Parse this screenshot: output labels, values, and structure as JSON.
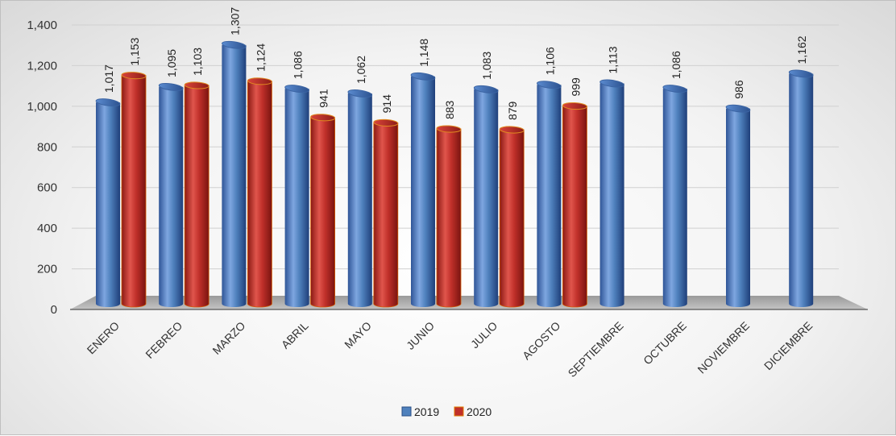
{
  "chart_data": {
    "type": "bar",
    "categories": [
      "ENERO",
      "FEBREO",
      "MARZO",
      "ABRIL",
      "MAYO",
      "JUNIO",
      "JULIO",
      "AGOSTO",
      "SEPTIEMBRE",
      "OCTUBRE",
      "NOVIEMBRE",
      "DICIEMBRE"
    ],
    "series": [
      {
        "name": "2019",
        "color": "#4f81bd",
        "values": [
          1017,
          1095,
          1307,
          1086,
          1062,
          1148,
          1083,
          1106,
          1113,
          1086,
          986,
          1162
        ]
      },
      {
        "name": "2020",
        "color": "#c0302a",
        "values": [
          1153,
          1103,
          1124,
          941,
          914,
          883,
          879,
          999,
          null,
          null,
          null,
          null
        ]
      }
    ],
    "value_labels": {
      "2019": [
        "1,017",
        "1,095",
        "1,307",
        "1,086",
        "1,062",
        "1,148",
        "1,083",
        "1,106",
        "1,113",
        "1,086",
        "986",
        "1,162"
      ],
      "2020": [
        "1,153",
        "1,103",
        "1,124",
        "941",
        "914",
        "883",
        "879",
        "999",
        null,
        null,
        null,
        null
      ]
    },
    "yticks": [
      "0",
      "200",
      "400",
      "600",
      "800",
      "1,000",
      "1,200",
      "1,400"
    ],
    "ylim": [
      0,
      1400
    ],
    "grid": true,
    "legend_position": "bottom",
    "title": "",
    "xlabel": "",
    "ylabel": ""
  }
}
